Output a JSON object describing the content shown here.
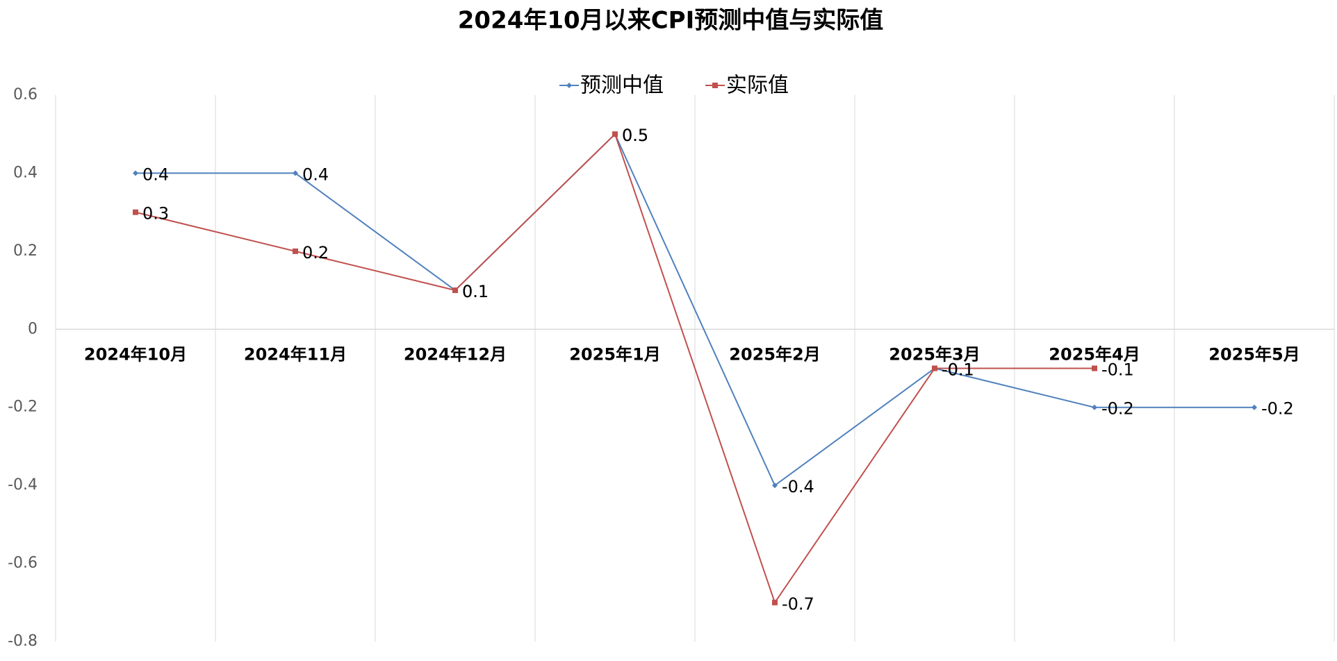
{
  "chart_data": {
    "type": "line",
    "title": "2024年10月以来CPI预测中值与实际值",
    "categories": [
      "2024年10月",
      "2024年11月",
      "2024年12月",
      "2025年1月",
      "2025年2月",
      "2025年3月",
      "2025年4月",
      "2025年5月"
    ],
    "series": [
      {
        "name": "预测中值",
        "color": "#4f81bd",
        "values": [
          0.4,
          0.4,
          0.1,
          0.5,
          -0.4,
          -0.1,
          -0.2,
          -0.2
        ]
      },
      {
        "name": "实际值",
        "color": "#c0504d",
        "values": [
          0.3,
          0.2,
          0.1,
          0.5,
          -0.7,
          -0.1,
          -0.1,
          null
        ]
      }
    ],
    "ylim": [
      -0.8,
      0.6
    ],
    "yticks": [
      -0.8,
      -0.6,
      -0.4,
      -0.2,
      0,
      0.2,
      0.4,
      0.6
    ],
    "grid": true,
    "legend": "top"
  }
}
